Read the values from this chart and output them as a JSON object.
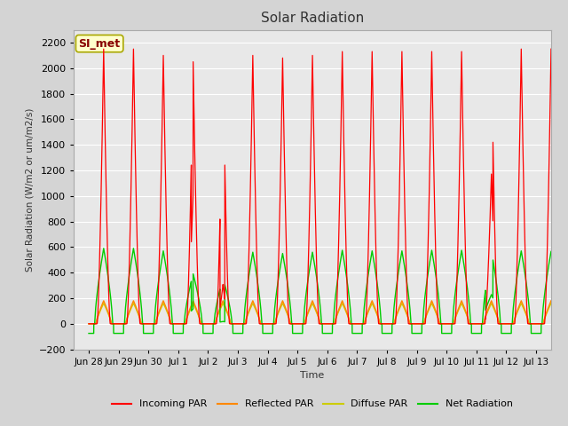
{
  "title": "Solar Radiation",
  "ylabel": "Solar Radiation (W/m2 or um/m2/s)",
  "xlabel": "Time",
  "ylim": [
    -200,
    2300
  ],
  "yticks": [
    -200,
    0,
    200,
    400,
    600,
    800,
    1000,
    1200,
    1400,
    1600,
    1800,
    2000,
    2200
  ],
  "fig_bg_color": "#d4d4d4",
  "plot_bg_color": "#e8e8e8",
  "grid_color": "#ffffff",
  "annotation_text": "SI_met",
  "annotation_bg": "#ffffcc",
  "annotation_border": "#aaa800",
  "annotation_text_color": "#880000",
  "colors": {
    "incoming": "#ff0000",
    "reflected": "#ff8800",
    "diffuse": "#cccc00",
    "net": "#00cc00"
  },
  "legend_labels": [
    "Incoming PAR",
    "Reflected PAR",
    "Diffuse PAR",
    "Net Radiation"
  ],
  "xtick_labels": [
    "Jun 28",
    "Jun 29",
    "Jun 30",
    "Jul 1",
    "Jul 2",
    "Jul 3",
    "Jul 4",
    "Jul 5",
    "Jul 6",
    "Jul 7",
    "Jul 8",
    "Jul 9",
    "Jul 10",
    "Jul 11",
    "Jul 12",
    "Jul 13"
  ],
  "xtick_positions": [
    0,
    1,
    2,
    3,
    4,
    5,
    6,
    7,
    8,
    9,
    10,
    11,
    12,
    13,
    14,
    15
  ]
}
